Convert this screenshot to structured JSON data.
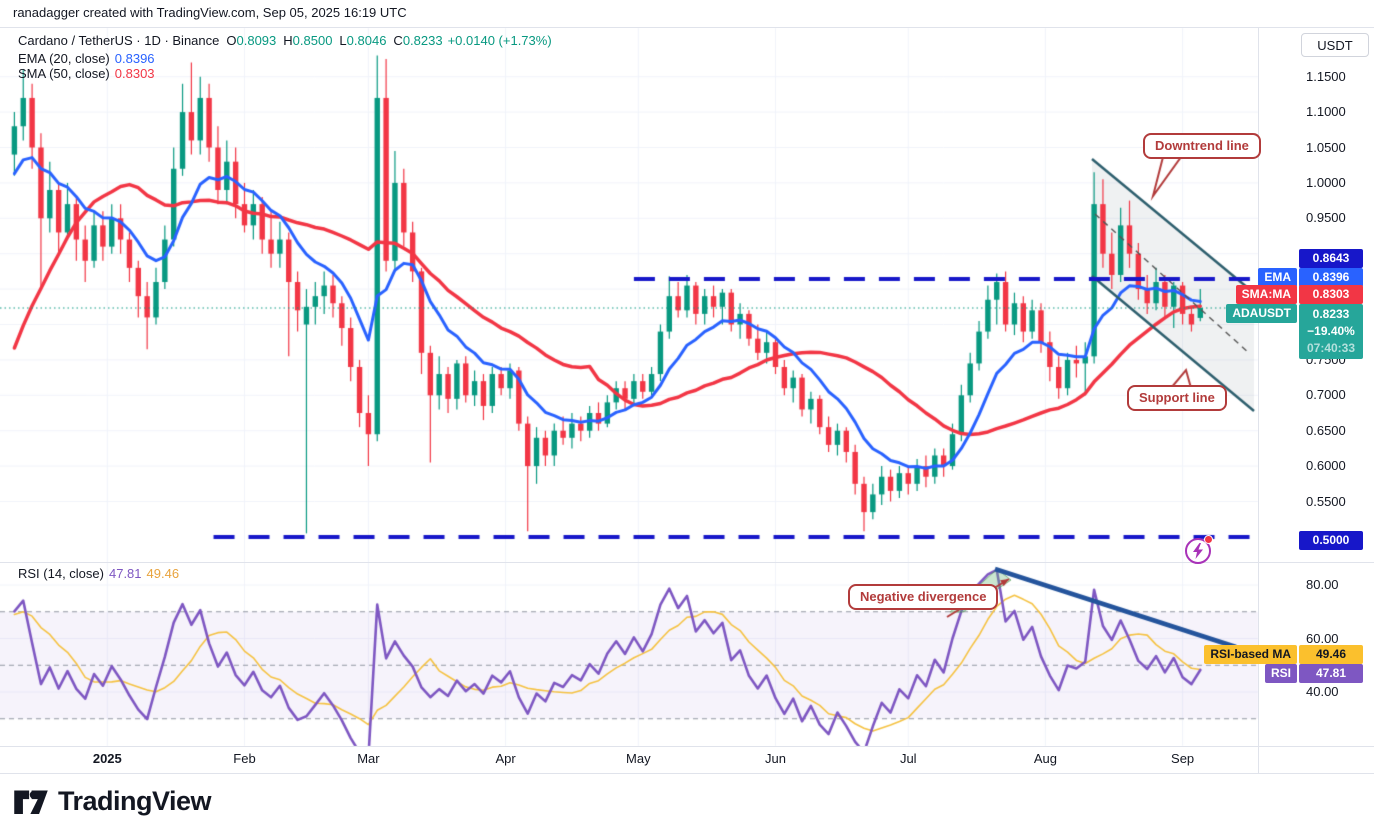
{
  "attribution": "ranadagger created with TradingView.com, Sep 05, 2025 16:19 UTC",
  "legend": {
    "symbol": "Cardano / TetherUS · 1D · Binance",
    "open_label": "O",
    "open": "0.8093",
    "high_label": "H",
    "high": "0.8500",
    "low_label": "L",
    "low": "0.8046",
    "close_label": "C",
    "close": "0.8233",
    "change": "+0.0140 (+1.73%)",
    "ema_label": "EMA (20, close)",
    "ema_value": "0.8396",
    "sma_label": "SMA (50, close)",
    "sma_value": "0.8303",
    "rsi_label": "RSI (14, close)",
    "rsi_value": "47.81",
    "rsi_ma_value": "49.46"
  },
  "axis": {
    "currency_button": "USDT"
  },
  "tags": {
    "level_upper": "0.8643",
    "ema_chip": "EMA",
    "ema_value": "0.8396",
    "sma_chip": "SMA:MA",
    "sma_value": "0.8303",
    "symbol_chip": "ADAUSDT",
    "symbol_price": "0.8233",
    "symbol_change": "−19.40%",
    "symbol_countdown": "07:40:33",
    "level_lower": "0.5000",
    "rsi_ma_chip": "RSI-based MA",
    "rsi_ma_value": "49.46",
    "rsi_chip": "RSI",
    "rsi_value": "47.81"
  },
  "callouts": {
    "downtrend": "Downtrend line",
    "support": "Support line",
    "negdiv": "Negative divergence"
  },
  "logo_text": "TradingView",
  "colors": {
    "up": "#089981",
    "down": "#f23645",
    "ema": "#2962ff",
    "sma": "#f23645",
    "level_blue": "#1717c9",
    "price_line": "#089981",
    "channel": "#2e5f6e",
    "channel_fill": "rgba(120,140,150,0.12)",
    "channel_mid": "#555555",
    "rsi": "#7e57c2",
    "rsi_ma": "#f5c242",
    "rsi_band": "rgba(126,87,194,0.07)",
    "rsi_dash": "#9096a1",
    "rsi_trend": "#24549c",
    "callout": "#b23b3b",
    "tag_upper": "#1717c9",
    "tag_ema": "#2962ff",
    "tag_sma": "#f23645",
    "tag_symbol": "#26a69a",
    "tag_rsi_ma_bg": "#fbc02d",
    "tag_rsi_ma_fg": "#131722",
    "tag_rsi": "#7e57c2",
    "grid": "#f0f3fa",
    "border": "#e0e3eb",
    "text": "#131722"
  },
  "chart_data": {
    "type": "candlestick",
    "title": "Cardano / TetherUS · 1D · Binance",
    "price_axis_labels": [
      {
        "text": "1.1500",
        "price": 1.15
      },
      {
        "text": "1.1000",
        "price": 1.1
      },
      {
        "text": "1.0500",
        "price": 1.05
      },
      {
        "text": "1.0000",
        "price": 1.0
      },
      {
        "text": "0.9500",
        "price": 0.95
      },
      {
        "text": "0.7500",
        "price": 0.75
      },
      {
        "text": "0.7000",
        "price": 0.7
      },
      {
        "text": "0.6500",
        "price": 0.65
      },
      {
        "text": "0.6000",
        "price": 0.6
      },
      {
        "text": "0.5500",
        "price": 0.55
      }
    ],
    "grid_prices": [
      0.55,
      0.6,
      0.65,
      0.7,
      0.75,
      0.8,
      0.85,
      0.9,
      0.95,
      1.0,
      1.05,
      1.1,
      1.15
    ],
    "months": [
      {
        "label": "2025",
        "index": 10.5,
        "bold": true
      },
      {
        "label": "Feb",
        "index": 26
      },
      {
        "label": "Mar",
        "index": 40
      },
      {
        "label": "Apr",
        "index": 55.5
      },
      {
        "label": "May",
        "index": 70.5
      },
      {
        "label": "Jun",
        "index": 86
      },
      {
        "label": "Jul",
        "index": 101
      },
      {
        "label": "Aug",
        "index": 116.5
      },
      {
        "label": "Sep",
        "index": 132
      }
    ],
    "levels": {
      "resistance": {
        "price": 0.8643,
        "from_index": 70
      },
      "support": {
        "price": 0.5,
        "from_index": 22.5
      },
      "last_price": 0.8233
    },
    "rsi_guides": {
      "labels": [
        {
          "text": "80.00",
          "value": 80
        },
        {
          "text": "60.00",
          "value": 60
        },
        {
          "text": "40.00",
          "value": 40
        }
      ],
      "dashed": [
        70,
        50,
        30
      ],
      "band": [
        30,
        70
      ]
    },
    "indicators": {
      "ema": {
        "label": "EMA (20, close)",
        "value": 0.8396,
        "calc_period": 10
      },
      "sma": {
        "label": "SMA (50, close)",
        "value": 0.8303,
        "calc_period": 25
      },
      "rsi": {
        "label": "RSI (14, close)",
        "value": 47.81,
        "calc_period": 7
      },
      "rsi_ma": {
        "label": "RSI-based MA",
        "value": 49.46,
        "calc_period": 7
      }
    },
    "prehistory_closes": [
      0.34,
      0.33,
      0.35,
      0.34,
      0.36,
      0.35,
      0.37,
      0.4,
      0.52,
      0.58,
      0.72,
      0.78,
      0.74,
      0.81,
      0.95,
      1.08,
      1.02,
      1.1,
      1.05,
      0.99,
      1.03,
      1.07,
      1.04,
      1.06,
      1.05
    ],
    "candles": [
      [
        1.04,
        1.1,
        1.01,
        1.08
      ],
      [
        1.08,
        1.16,
        1.06,
        1.12
      ],
      [
        1.12,
        1.14,
        1.02,
        1.05
      ],
      [
        1.05,
        1.07,
        0.85,
        0.95
      ],
      [
        0.95,
        1.03,
        0.93,
        0.99
      ],
      [
        0.99,
        1.0,
        0.9,
        0.93
      ],
      [
        0.93,
        1.0,
        0.92,
        0.97
      ],
      [
        0.97,
        0.98,
        0.89,
        0.92
      ],
      [
        0.92,
        0.94,
        0.86,
        0.89
      ],
      [
        0.89,
        0.96,
        0.88,
        0.94
      ],
      [
        0.94,
        0.96,
        0.89,
        0.91
      ],
      [
        0.91,
        0.97,
        0.9,
        0.95
      ],
      [
        0.95,
        0.97,
        0.9,
        0.92
      ],
      [
        0.92,
        0.93,
        0.86,
        0.88
      ],
      [
        0.88,
        0.89,
        0.81,
        0.84
      ],
      [
        0.84,
        0.86,
        0.765,
        0.81
      ],
      [
        0.81,
        0.88,
        0.8,
        0.86
      ],
      [
        0.86,
        0.94,
        0.85,
        0.92
      ],
      [
        0.92,
        1.05,
        0.91,
        1.02
      ],
      [
        1.02,
        1.14,
        1.01,
        1.1
      ],
      [
        1.1,
        1.17,
        1.04,
        1.06
      ],
      [
        1.06,
        1.15,
        1.04,
        1.12
      ],
      [
        1.12,
        1.14,
        1.03,
        1.05
      ],
      [
        1.05,
        1.08,
        0.97,
        0.99
      ],
      [
        0.99,
        1.06,
        0.97,
        1.03
      ],
      [
        1.03,
        1.05,
        0.95,
        0.97
      ],
      [
        0.97,
        1.0,
        0.93,
        0.94
      ],
      [
        0.94,
        0.99,
        0.92,
        0.97
      ],
      [
        0.97,
        0.98,
        0.9,
        0.92
      ],
      [
        0.92,
        0.96,
        0.88,
        0.9
      ],
      [
        0.9,
        0.945,
        0.88,
        0.92
      ],
      [
        0.92,
        0.93,
        0.755,
        0.86
      ],
      [
        0.86,
        0.875,
        0.79,
        0.82
      ],
      [
        0.8,
        0.85,
        0.505,
        0.825
      ],
      [
        0.825,
        0.86,
        0.8,
        0.84
      ],
      [
        0.84,
        0.875,
        0.815,
        0.855
      ],
      [
        0.855,
        0.87,
        0.81,
        0.83
      ],
      [
        0.83,
        0.84,
        0.77,
        0.795
      ],
      [
        0.795,
        0.81,
        0.72,
        0.74
      ],
      [
        0.74,
        0.75,
        0.655,
        0.675
      ],
      [
        0.675,
        0.7,
        0.6,
        0.645
      ],
      [
        0.645,
        1.18,
        0.635,
        1.12
      ],
      [
        1.12,
        1.175,
        0.875,
        0.89
      ],
      [
        0.89,
        1.045,
        0.875,
        1.0
      ],
      [
        1.0,
        1.02,
        0.91,
        0.93
      ],
      [
        0.93,
        0.945,
        0.86,
        0.875
      ],
      [
        0.875,
        0.88,
        0.73,
        0.76
      ],
      [
        0.76,
        0.77,
        0.605,
        0.7
      ],
      [
        0.7,
        0.755,
        0.68,
        0.73
      ],
      [
        0.73,
        0.74,
        0.675,
        0.695
      ],
      [
        0.695,
        0.75,
        0.68,
        0.745
      ],
      [
        0.745,
        0.755,
        0.69,
        0.7
      ],
      [
        0.7,
        0.735,
        0.685,
        0.72
      ],
      [
        0.72,
        0.73,
        0.665,
        0.685
      ],
      [
        0.685,
        0.74,
        0.675,
        0.73
      ],
      [
        0.73,
        0.74,
        0.7,
        0.71
      ],
      [
        0.71,
        0.745,
        0.695,
        0.735
      ],
      [
        0.735,
        0.74,
        0.65,
        0.66
      ],
      [
        0.66,
        0.67,
        0.508,
        0.6
      ],
      [
        0.6,
        0.655,
        0.575,
        0.64
      ],
      [
        0.64,
        0.65,
        0.6,
        0.615
      ],
      [
        0.615,
        0.66,
        0.6,
        0.65
      ],
      [
        0.65,
        0.67,
        0.63,
        0.64
      ],
      [
        0.64,
        0.675,
        0.625,
        0.66
      ],
      [
        0.66,
        0.67,
        0.635,
        0.65
      ],
      [
        0.65,
        0.685,
        0.64,
        0.675
      ],
      [
        0.675,
        0.69,
        0.65,
        0.66
      ],
      [
        0.66,
        0.7,
        0.655,
        0.69
      ],
      [
        0.69,
        0.72,
        0.68,
        0.71
      ],
      [
        0.71,
        0.72,
        0.68,
        0.695
      ],
      [
        0.695,
        0.73,
        0.685,
        0.72
      ],
      [
        0.72,
        0.73,
        0.695,
        0.705
      ],
      [
        0.705,
        0.74,
        0.7,
        0.73
      ],
      [
        0.73,
        0.8,
        0.72,
        0.79
      ],
      [
        0.79,
        0.868,
        0.78,
        0.84
      ],
      [
        0.84,
        0.86,
        0.81,
        0.82
      ],
      [
        0.82,
        0.87,
        0.81,
        0.855
      ],
      [
        0.855,
        0.86,
        0.8,
        0.815
      ],
      [
        0.815,
        0.85,
        0.8,
        0.84
      ],
      [
        0.84,
        0.855,
        0.81,
        0.825
      ],
      [
        0.825,
        0.85,
        0.8,
        0.845
      ],
      [
        0.845,
        0.85,
        0.79,
        0.8
      ],
      [
        0.8,
        0.83,
        0.78,
        0.815
      ],
      [
        0.815,
        0.82,
        0.77,
        0.78
      ],
      [
        0.78,
        0.8,
        0.75,
        0.76
      ],
      [
        0.76,
        0.79,
        0.745,
        0.775
      ],
      [
        0.775,
        0.78,
        0.73,
        0.74
      ],
      [
        0.74,
        0.75,
        0.7,
        0.71
      ],
      [
        0.71,
        0.735,
        0.69,
        0.725
      ],
      [
        0.725,
        0.73,
        0.67,
        0.68
      ],
      [
        0.68,
        0.705,
        0.66,
        0.695
      ],
      [
        0.695,
        0.7,
        0.645,
        0.655
      ],
      [
        0.655,
        0.67,
        0.62,
        0.63
      ],
      [
        0.63,
        0.66,
        0.615,
        0.65
      ],
      [
        0.65,
        0.655,
        0.605,
        0.62
      ],
      [
        0.62,
        0.63,
        0.56,
        0.575
      ],
      [
        0.575,
        0.585,
        0.508,
        0.535
      ],
      [
        0.535,
        0.575,
        0.525,
        0.56
      ],
      [
        0.56,
        0.6,
        0.545,
        0.585
      ],
      [
        0.585,
        0.595,
        0.55,
        0.565
      ],
      [
        0.565,
        0.6,
        0.555,
        0.59
      ],
      [
        0.59,
        0.6,
        0.56,
        0.575
      ],
      [
        0.575,
        0.61,
        0.565,
        0.6
      ],
      [
        0.6,
        0.615,
        0.57,
        0.585
      ],
      [
        0.585,
        0.625,
        0.575,
        0.615
      ],
      [
        0.615,
        0.625,
        0.585,
        0.6
      ],
      [
        0.6,
        0.66,
        0.595,
        0.645
      ],
      [
        0.645,
        0.715,
        0.635,
        0.7
      ],
      [
        0.7,
        0.76,
        0.69,
        0.745
      ],
      [
        0.745,
        0.805,
        0.735,
        0.79
      ],
      [
        0.79,
        0.855,
        0.78,
        0.835
      ],
      [
        0.835,
        0.872,
        0.8,
        0.86
      ],
      [
        0.86,
        0.875,
        0.79,
        0.8
      ],
      [
        0.8,
        0.845,
        0.785,
        0.83
      ],
      [
        0.83,
        0.84,
        0.775,
        0.79
      ],
      [
        0.79,
        0.835,
        0.78,
        0.82
      ],
      [
        0.82,
        0.83,
        0.76,
        0.775
      ],
      [
        0.775,
        0.79,
        0.72,
        0.74
      ],
      [
        0.74,
        0.755,
        0.695,
        0.71
      ],
      [
        0.71,
        0.76,
        0.7,
        0.75
      ],
      [
        0.75,
        0.77,
        0.725,
        0.745
      ],
      [
        0.745,
        0.775,
        0.7,
        0.755
      ],
      [
        0.755,
        1.015,
        0.745,
        0.97
      ],
      [
        0.97,
        1.005,
        0.88,
        0.9
      ],
      [
        0.9,
        0.93,
        0.85,
        0.87
      ],
      [
        0.87,
        0.965,
        0.86,
        0.94
      ],
      [
        0.94,
        0.975,
        0.88,
        0.9
      ],
      [
        0.9,
        0.915,
        0.835,
        0.85
      ],
      [
        0.85,
        0.87,
        0.815,
        0.83
      ],
      [
        0.83,
        0.88,
        0.82,
        0.86
      ],
      [
        0.86,
        0.87,
        0.81,
        0.825
      ],
      [
        0.825,
        0.86,
        0.795,
        0.855
      ],
      [
        0.855,
        0.86,
        0.8,
        0.815
      ],
      [
        0.815,
        0.825,
        0.79,
        0.8
      ],
      [
        0.8093,
        0.85,
        0.8046,
        0.8233
      ]
    ],
    "drawings": {
      "channel_upper": [
        1092,
        159,
        1254,
        293
      ],
      "channel_lower": [
        1092,
        276,
        1254,
        411
      ],
      "channel_mid_dashed": [
        1095,
        214,
        1249,
        353
      ],
      "rsi_trendline": [
        995,
        569,
        1236,
        647
      ],
      "divergence_arrow": [
        947,
        617,
        1009,
        579
      ],
      "divergence_triangle": [
        [
          950,
          612
        ],
        [
          997,
          569
        ],
        [
          1011,
          580
        ],
        [
          963,
          612
        ]
      ],
      "tail_downtrend": [
        [
          1163,
          157
        ],
        [
          1181,
          157
        ],
        [
          1153,
          196
        ]
      ],
      "tail_support": [
        [
          1171,
          388
        ],
        [
          1191,
          388
        ],
        [
          1186,
          370
        ]
      ],
      "tail_negdiv": [
        [
          976,
          592
        ],
        [
          976,
          608
        ],
        [
          994,
          600
        ]
      ]
    }
  }
}
